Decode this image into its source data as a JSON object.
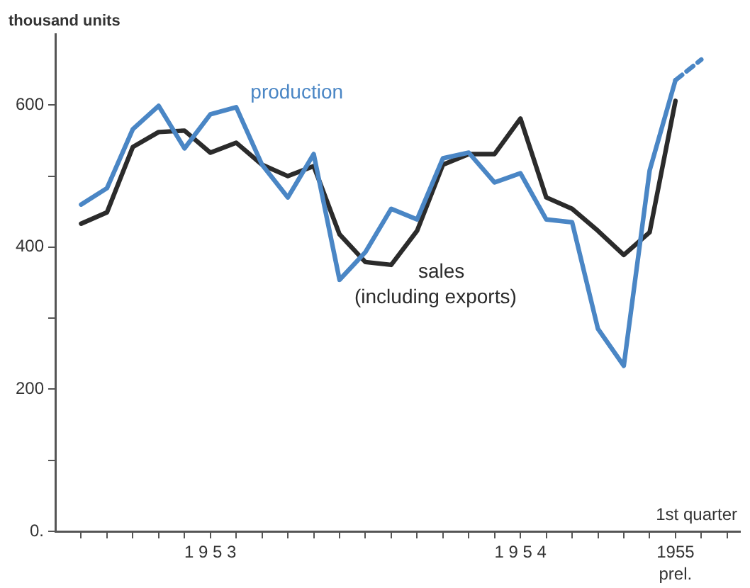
{
  "chart_data": {
    "type": "line",
    "ylabel": "thousand units",
    "categories": [
      null,
      null,
      null,
      null,
      null,
      "1 9 5 3",
      null,
      null,
      null,
      null,
      null,
      null,
      null,
      null,
      null,
      null,
      null,
      "1 9 5 4",
      null,
      null,
      null,
      null,
      null,
      "1955",
      null,
      null
    ],
    "series": [
      {
        "name": "production",
        "color": "#4a86c5",
        "values": [
          460,
          483,
          566,
          599,
          539,
          587,
          597,
          516,
          470,
          531,
          354,
          393,
          454,
          439,
          525,
          533,
          491,
          504,
          439,
          435,
          285,
          233,
          508,
          635,
          null,
          null
        ]
      },
      {
        "color": "#4a86c5",
        "type": "line",
        "line_style": "dashed",
        "values": [
          null,
          null,
          null,
          null,
          null,
          null,
          null,
          null,
          null,
          null,
          null,
          null,
          null,
          null,
          null,
          null,
          null,
          null,
          null,
          null,
          null,
          null,
          null,
          635,
          664,
          null
        ]
      },
      {
        "name": "sales (including exports)",
        "color": "#2b2b2b",
        "values": [
          433,
          449,
          541,
          562,
          564,
          533,
          547,
          516,
          500,
          514,
          418,
          379,
          375,
          423,
          516,
          531,
          531,
          581,
          470,
          454,
          423,
          389,
          421,
          606,
          null,
          null
        ]
      }
    ],
    "ylim": [
      0,
      700
    ],
    "yticks": [
      {
        "value": 0,
        "label": "0."
      },
      {
        "value": 100,
        "label": null
      },
      200,
      {
        "value": 300,
        "label": null
      },
      400,
      {
        "value": 500,
        "label": null
      },
      600
    ],
    "annotations": [
      "1st quarter",
      "prel."
    ],
    "grid": false,
    "legend": false,
    "marker": "none",
    "line_style": "solid"
  }
}
